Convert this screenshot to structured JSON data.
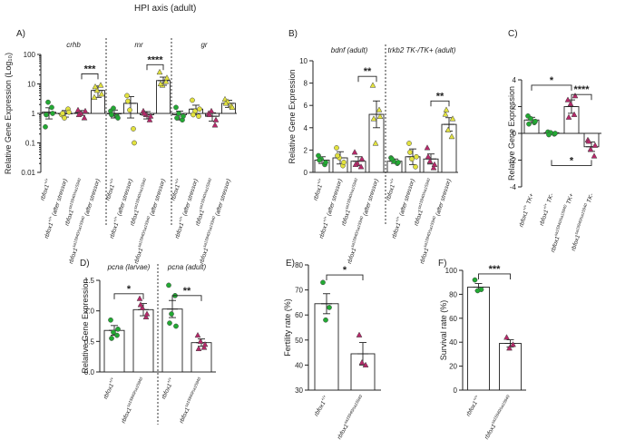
{
  "figure_title": "HPI axis (adult)",
  "colors": {
    "green": "#22aa33",
    "yellow": "#e2e23e",
    "magenta": "#b7286a"
  },
  "chart_data": [
    {
      "id": "A",
      "panel_label": "A)",
      "type": "bar",
      "yscale": "log",
      "ylabel": "Relative Gene Expression (Log₁₀)",
      "ylim": [
        0.01,
        100
      ],
      "yticks": [
        0.01,
        0.1,
        1,
        10,
        100
      ],
      "ytick_labels": [
        "0.01",
        "0.1",
        "1",
        "10",
        "100"
      ],
      "reference_line": 1,
      "group_labels": [
        "crhb",
        "mr",
        "gr"
      ],
      "categories": [
        {
          "label": "rbfox1+/+",
          "color": "green",
          "marker": "circle",
          "mean": 1.1,
          "err": 0.45,
          "points": [
            0.35,
            1.6,
            2.4,
            1.0,
            0.9
          ]
        },
        {
          "label": "rbfox1+/+ (after stressor)",
          "color": "yellow",
          "marker": "circle",
          "mean": 1.0,
          "err": 0.25,
          "points": [
            0.9,
            1.4,
            0.7,
            1.1,
            1.0
          ]
        },
        {
          "label": "rbfox1sa15940/sa15940",
          "color": "magenta",
          "marker": "triangle",
          "mean": 1.05,
          "err": 0.2,
          "points": [
            1.3,
            0.7,
            1.0,
            1.2,
            0.9
          ]
        },
        {
          "label": "rbfox1sa15940/sa15940 (after stressor)",
          "color": "yellow",
          "marker": "triangle",
          "mean": 6.0,
          "err": 2.5,
          "points": [
            3.5,
            9,
            6,
            4.5,
            8
          ]
        },
        {
          "label": "rbfox1+/+",
          "color": "green",
          "marker": "circle",
          "mean": 1.0,
          "err": 0.3,
          "points": [
            1.2,
            0.8,
            1.5,
            0.7,
            0.9
          ]
        },
        {
          "label": "rbfox1+/+ (after stressor)",
          "color": "yellow",
          "marker": "circle",
          "mean": 2.2,
          "err": 1.5,
          "points": [
            4,
            0.3,
            1.3,
            0.1,
            2.6
          ]
        },
        {
          "label": "rbfox1sa15940/sa15940",
          "color": "magenta",
          "marker": "triangle",
          "mean": 0.9,
          "err": 0.25,
          "points": [
            1.2,
            0.6,
            0.9,
            0.8,
            1.0
          ]
        },
        {
          "label": "rbfox1sa15940/sa15940 (after stressor)",
          "color": "yellow",
          "marker": "triangle",
          "mean": 13,
          "err": 4,
          "points": [
            25,
            12,
            9,
            16,
            10
          ]
        },
        {
          "label": "rbfox1+/+",
          "color": "green",
          "marker": "circle",
          "mean": 0.9,
          "err": 0.3,
          "points": [
            1.6,
            0.6,
            1.0,
            0.8,
            0.7
          ]
        },
        {
          "label": "rbfox1+/+ (after stressor)",
          "color": "yellow",
          "marker": "circle",
          "mean": 1.4,
          "err": 0.5,
          "points": [
            2.8,
            0.8,
            1.2,
            1.4,
            0.9
          ]
        },
        {
          "label": "rbfox1sa15940/sa15940",
          "color": "magenta",
          "marker": "triangle",
          "mean": 0.8,
          "err": 0.25,
          "points": [
            1.0,
            0.4,
            1.2,
            0.6,
            0.9
          ]
        },
        {
          "label": "rbfox1sa15940/sa15940 (after stressor)",
          "color": "yellow",
          "marker": "triangle",
          "mean": 2.2,
          "err": 0.6,
          "points": [
            3,
            1.8,
            2.5,
            1.6,
            2.2
          ]
        }
      ],
      "significance": [
        {
          "from": 2,
          "to": 3,
          "label": "***",
          "y": 22
        },
        {
          "from": 6,
          "to": 7,
          "label": "****",
          "y": 45
        }
      ]
    },
    {
      "id": "B",
      "panel_label": "B)",
      "type": "bar",
      "yscale": "linear",
      "ylabel": "Relative Gene Expression",
      "ylim": [
        0,
        10
      ],
      "yticks": [
        0,
        2,
        4,
        6,
        8,
        10
      ],
      "ytick_labels": [
        "0",
        "2",
        "4",
        "6",
        "8",
        "10"
      ],
      "group_labels": [
        "bdnf (adult)",
        "trkb2 TK-/TK+ (adult)"
      ],
      "categories": [
        {
          "label": "rbfox1+/+",
          "color": "green",
          "marker": "circle",
          "mean": 1.1,
          "err": 0.3,
          "points": [
            1.5,
            0.7,
            1.2,
            0.9,
            1.1
          ]
        },
        {
          "label": "rbfox1+/+ (after stressor)",
          "color": "yellow",
          "marker": "circle",
          "mean": 1.3,
          "err": 0.55,
          "points": [
            2.2,
            0.6,
            1.3,
            0.9,
            1.5
          ]
        },
        {
          "label": "rbfox1sa15940/sa15940",
          "color": "magenta",
          "marker": "triangle",
          "mean": 1.0,
          "err": 0.4,
          "points": [
            1.8,
            0.5,
            0.8,
            1.2,
            0.7
          ]
        },
        {
          "label": "rbfox1sa15940/sa15940 (after stressor)",
          "color": "yellow",
          "marker": "triangle",
          "mean": 5.2,
          "err": 1.2,
          "points": [
            7.8,
            5.6,
            2.6,
            5.0,
            4.8
          ]
        },
        {
          "label": "rbfox1+/+",
          "color": "green",
          "marker": "circle",
          "mean": 1.0,
          "err": 0.2,
          "points": [
            1.3,
            0.8,
            1.0,
            0.9,
            1.2
          ]
        },
        {
          "label": "rbfox1+/+ (after stressor)",
          "color": "yellow",
          "marker": "circle",
          "mean": 1.4,
          "err": 0.7,
          "points": [
            2.6,
            0.5,
            1.2,
            1.4,
            1.8
          ]
        },
        {
          "label": "rbfox1sa15940/sa15940",
          "color": "magenta",
          "marker": "triangle",
          "mean": 1.2,
          "err": 0.45,
          "points": [
            2.2,
            0.4,
            1.0,
            0.7,
            1.4
          ]
        },
        {
          "label": "rbfox1sa15940/sa15940 (after stressor)",
          "color": "yellow",
          "marker": "triangle",
          "mean": 4.3,
          "err": 0.6,
          "points": [
            5.2,
            3.2,
            3.8,
            4.8,
            5.6
          ]
        }
      ],
      "significance": [
        {
          "from": 2,
          "to": 3,
          "label": "**",
          "y": 8.6
        },
        {
          "from": 6,
          "to": 7,
          "label": "**",
          "y": 6.4
        }
      ]
    },
    {
      "id": "C",
      "panel_label": "C)",
      "type": "bar",
      "yscale": "linear",
      "ylabel": "Relative Gene Expression",
      "ylim": [
        -4,
        4
      ],
      "yticks": [
        -4,
        -2,
        0,
        2,
        4
      ],
      "ytick_labels": [
        "-4",
        "-2",
        "0",
        "2",
        "4"
      ],
      "reference_line": 0,
      "categories": [
        {
          "label": "rbfox1+/+ TK+",
          "color": "green",
          "marker": "circle",
          "mean": 1.0,
          "err": 0.2,
          "points": [
            1.3,
            0.8,
            1.1,
            0.9,
            0.7
          ]
        },
        {
          "label": "rbfox1+/+ TK-",
          "color": "green",
          "marker": "circle",
          "mean": 0.05,
          "err": 0.05,
          "points": [
            0.1,
            -0.05,
            0.05,
            0.0,
            -0.1
          ]
        },
        {
          "label": "rbfox1sa15940/sa15940 TK+",
          "color": "magenta",
          "marker": "triangle",
          "mean": 2.0,
          "err": 0.5,
          "points": [
            2.5,
            1.4,
            2.2,
            2.8,
            1.2
          ]
        },
        {
          "label": "rbfox1sa15940/sa15940 TK-",
          "color": "magenta",
          "marker": "triangle",
          "mean": -1.0,
          "err": 0.35,
          "points": [
            -0.5,
            -1.7,
            -1.2,
            -0.9,
            -0.6
          ]
        }
      ],
      "significance": [
        {
          "from": 0,
          "to": 2,
          "label": "*",
          "y": 3.6,
          "side": "top"
        },
        {
          "from": 2,
          "to": 3,
          "label": "****",
          "y": 2.9,
          "side": "top"
        },
        {
          "from": 1,
          "to": 3,
          "label": "*",
          "y": -2.4,
          "side": "bottom"
        }
      ]
    },
    {
      "id": "D",
      "panel_label": "D)",
      "type": "bar",
      "yscale": "linear",
      "ylabel": "Relative Gene Expression",
      "ylim": [
        0,
        1.5
      ],
      "yticks": [
        0,
        0.5,
        1.0,
        1.5
      ],
      "ytick_labels": [
        "0.0",
        "0.5",
        "1.0",
        "1.5"
      ],
      "group_labels": [
        "pcna (larvae)",
        "pcna (adult)"
      ],
      "categories": [
        {
          "label": "rbfox1+/+",
          "color": "green",
          "marker": "circle",
          "mean": 0.68,
          "err": 0.08,
          "points": [
            0.85,
            0.6,
            0.65,
            0.7,
            0.55
          ]
        },
        {
          "label": "rbfox1sa15940/sa15940",
          "color": "magenta",
          "marker": "triangle",
          "mean": 1.02,
          "err": 0.1,
          "points": [
            1.2,
            0.9,
            1.05,
            0.95,
            1.1
          ]
        },
        {
          "label": "rbfox1+/+",
          "color": "green",
          "marker": "circle",
          "mean": 1.03,
          "err": 0.14,
          "points": [
            1.42,
            1.25,
            0.95,
            0.75,
            0.8
          ]
        },
        {
          "label": "rbfox1sa15940/sa15940",
          "color": "magenta",
          "marker": "triangle",
          "mean": 0.48,
          "err": 0.06,
          "points": [
            0.6,
            0.4,
            0.5,
            0.45,
            0.38
          ]
        }
      ],
      "significance": [
        {
          "from": 0,
          "to": 1,
          "label": "*",
          "y": 1.28
        },
        {
          "from": 2,
          "to": 3,
          "label": "**",
          "y": 1.25
        }
      ]
    },
    {
      "id": "E",
      "panel_label": "E)",
      "type": "bar",
      "yscale": "linear",
      "ylabel": "Fertility rate (%)",
      "ylim": [
        30,
        80
      ],
      "yticks": [
        30,
        40,
        50,
        60,
        70,
        80
      ],
      "ytick_labels": [
        "30",
        "40",
        "50",
        "60",
        "70",
        "80"
      ],
      "categories": [
        {
          "label": "rbfox1+/+",
          "color": "green",
          "marker": "circle",
          "mean": 64.5,
          "err": 4,
          "points": [
            73,
            63,
            58
          ]
        },
        {
          "label": "rbfox1sa15940/sa15940",
          "color": "magenta",
          "marker": "triangle",
          "mean": 44.5,
          "err": 4.5,
          "points": [
            52,
            40,
            41
          ]
        }
      ],
      "significance": [
        {
          "from": 0,
          "to": 1,
          "label": "*",
          "y": 76
        }
      ]
    },
    {
      "id": "F",
      "panel_label": "F)",
      "type": "bar",
      "yscale": "linear",
      "ylabel": "Survival rate (%)",
      "ylim": [
        0,
        100
      ],
      "yticks": [
        0,
        20,
        40,
        60,
        80,
        100
      ],
      "ytick_labels": [
        "0",
        "20",
        "40",
        "60",
        "80",
        "100"
      ],
      "categories": [
        {
          "label": "rbfox1+/+",
          "color": "green",
          "marker": "circle",
          "mean": 86,
          "err": 3,
          "points": [
            92,
            84,
            83
          ]
        },
        {
          "label": "rbfox1sa15940/sa15940",
          "color": "magenta",
          "marker": "triangle",
          "mean": 39,
          "err": 3,
          "points": [
            44,
            38,
            35
          ]
        }
      ],
      "significance": [
        {
          "from": 0,
          "to": 1,
          "label": "***",
          "y": 97
        }
      ]
    }
  ]
}
